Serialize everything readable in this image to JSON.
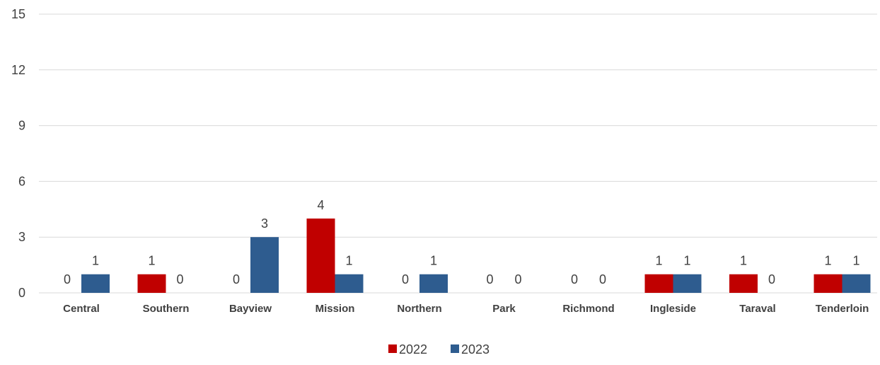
{
  "chart_data": {
    "type": "bar",
    "title": "",
    "xlabel": "",
    "ylabel": "",
    "categories": [
      "Central",
      "Southern",
      "Bayview",
      "Mission",
      "Northern",
      "Park",
      "Richmond",
      "Ingleside",
      "Taraval",
      "Tenderloin"
    ],
    "series": [
      {
        "name": "2022",
        "color": "#c00000",
        "values": [
          0,
          1,
          0,
          4,
          0,
          0,
          0,
          1,
          1,
          1
        ]
      },
      {
        "name": "2023",
        "color": "#2e5c8f",
        "values": [
          1,
          0,
          3,
          1,
          1,
          0,
          0,
          1,
          0,
          1
        ]
      }
    ],
    "ylim": [
      0,
      15
    ],
    "yticks": [
      0,
      3,
      6,
      9,
      12,
      15
    ],
    "grid": true,
    "legend": "bottom-center",
    "data_labels": true
  }
}
